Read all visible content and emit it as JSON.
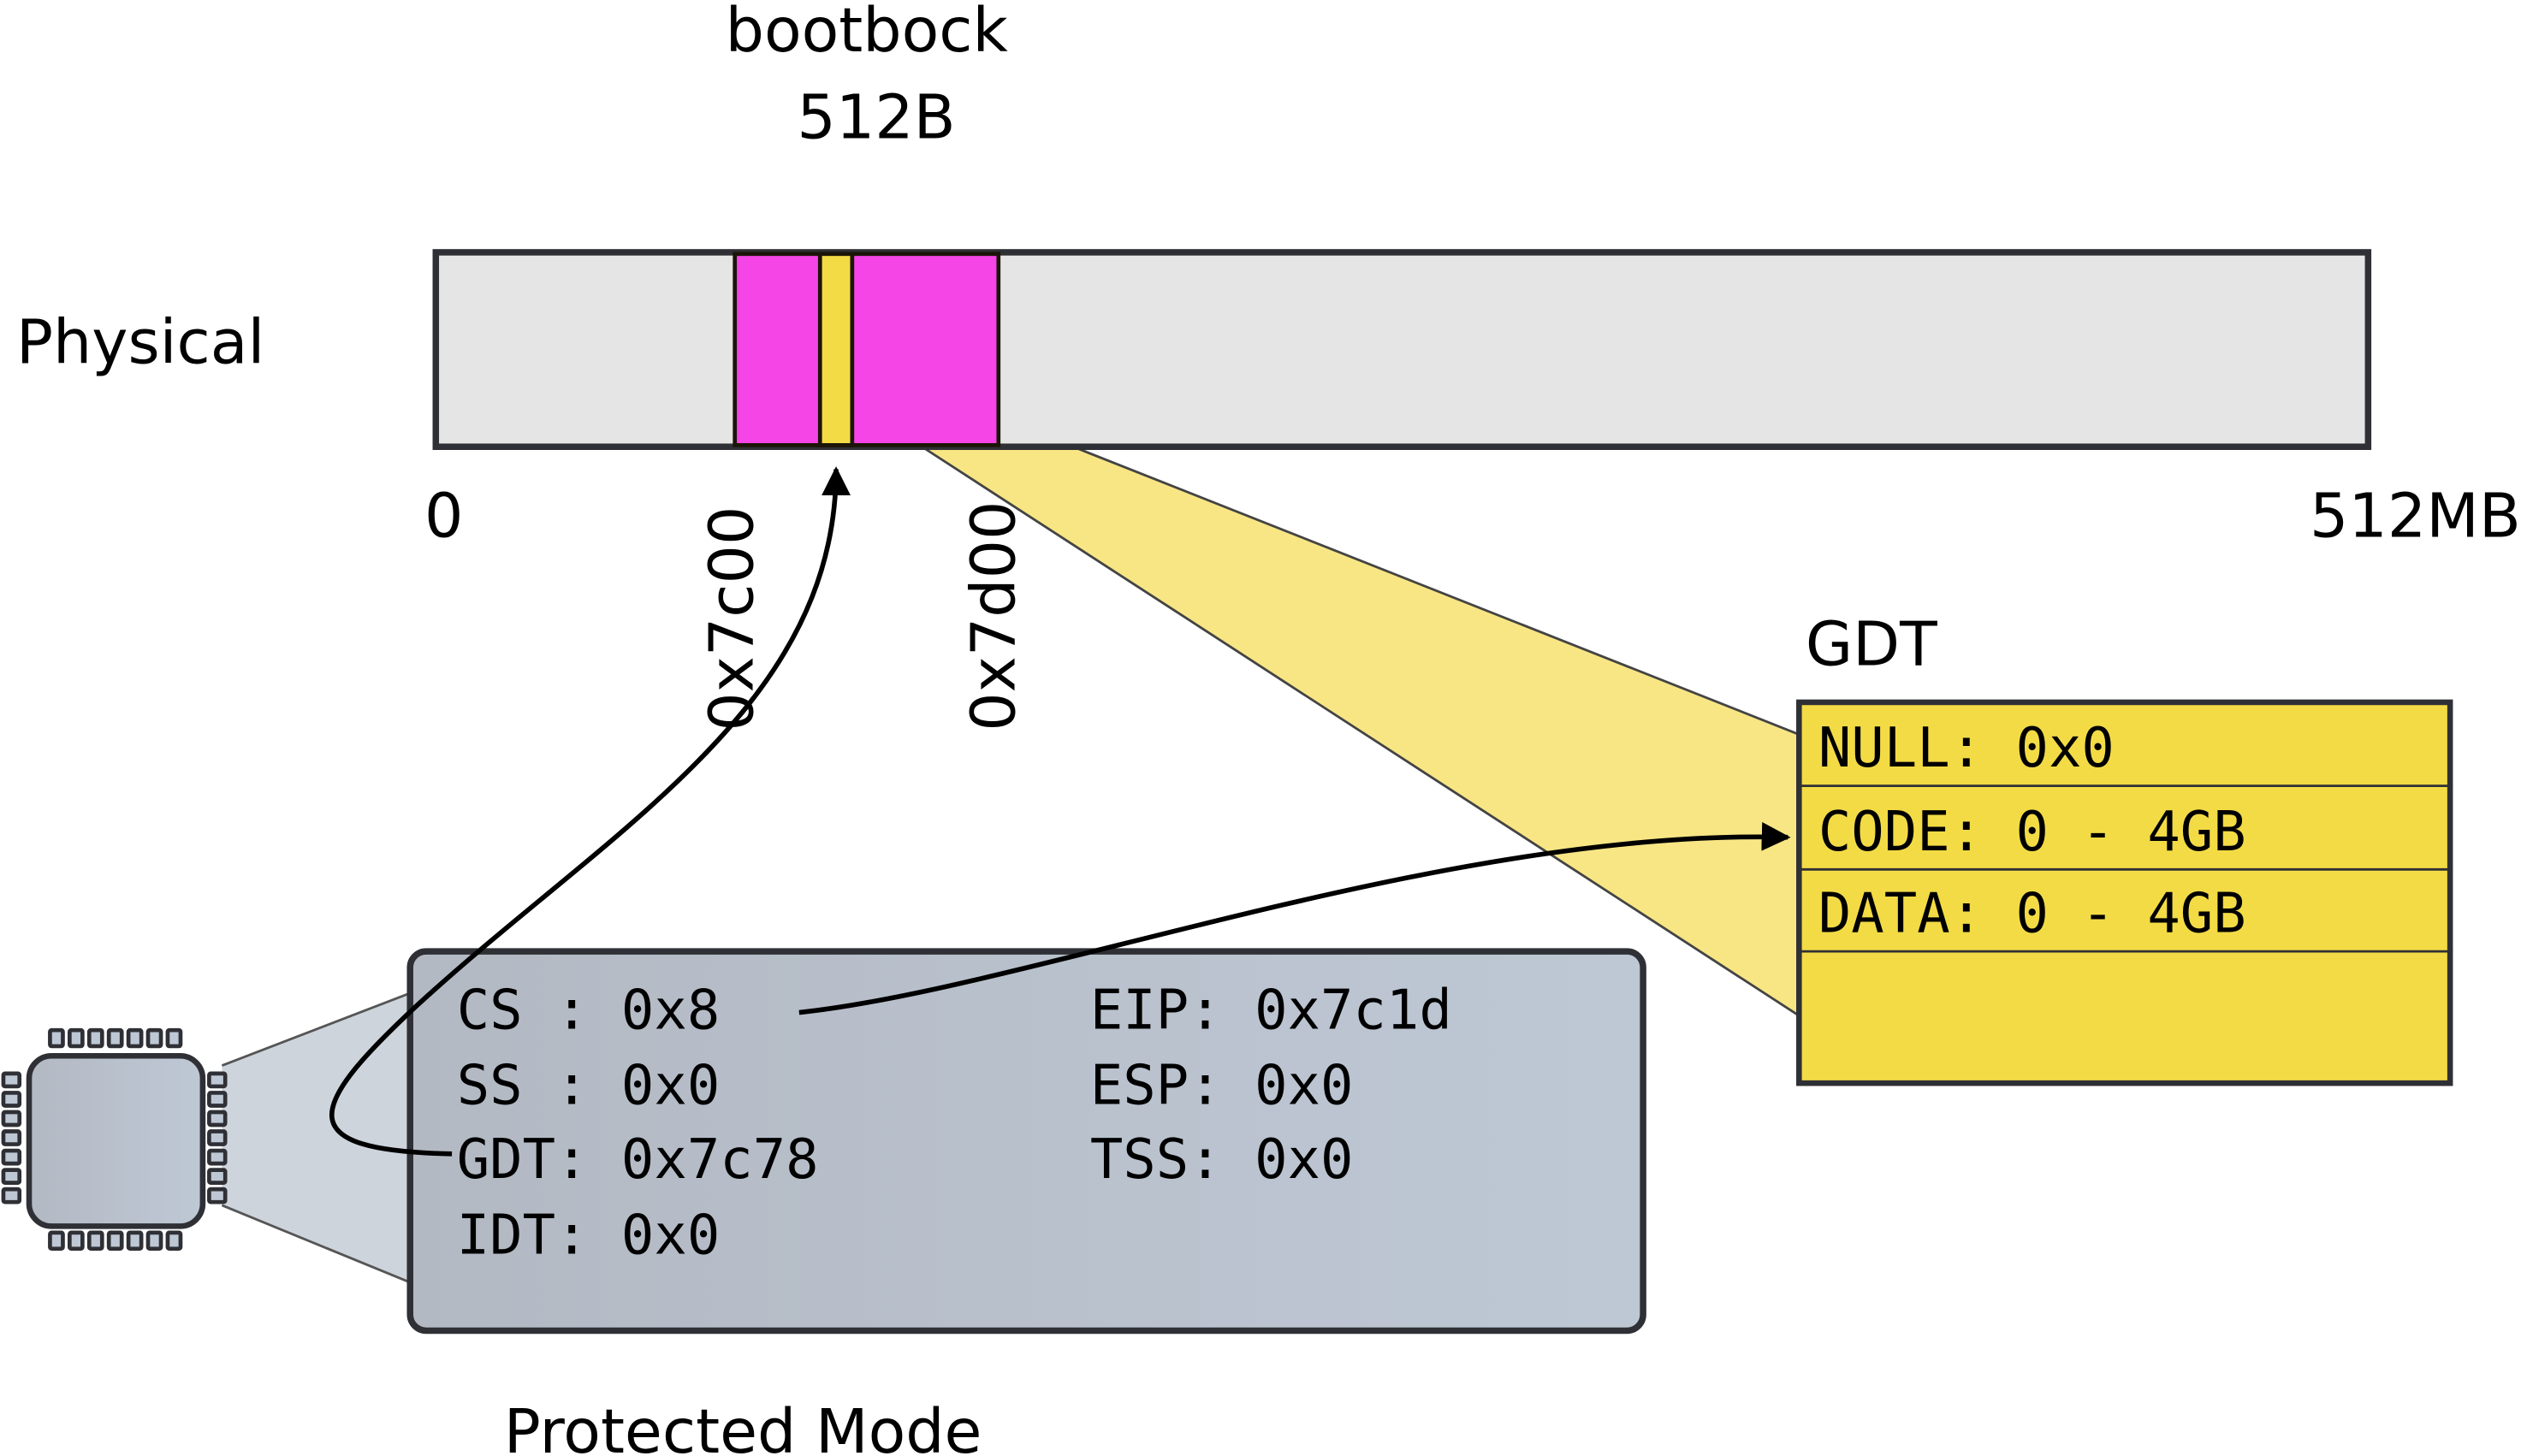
{
  "bootblock": {
    "title": "bootbock",
    "size": "512B"
  },
  "physical": {
    "label": "Physical",
    "start_label": "0",
    "end_label": "512MB",
    "marker_1": "0x7c00",
    "marker_2": "0x7d00"
  },
  "gdt": {
    "title": "GDT",
    "rows": [
      "NULL: 0x0",
      "CODE: 0 - 4GB",
      "DATA: 0 - 4GB",
      ""
    ]
  },
  "cpu": {
    "mode_label": "Protected Mode",
    "registers": {
      "cs": "CS : 0x8",
      "ss": "SS : 0x0",
      "gdt": "GDT: 0x7c78",
      "idt": "IDT: 0x0",
      "eip": "EIP: 0x7c1d",
      "esp": "ESP: 0x0",
      "tss": "TSS: 0x0"
    }
  },
  "colors": {
    "memory": "#e5e5e5",
    "bootblock": "#f545e6",
    "gdt": "#f3db45",
    "gdt_funnel": "#f8e684",
    "cpu": "#b8c0cc",
    "outline": "#2f3035"
  }
}
